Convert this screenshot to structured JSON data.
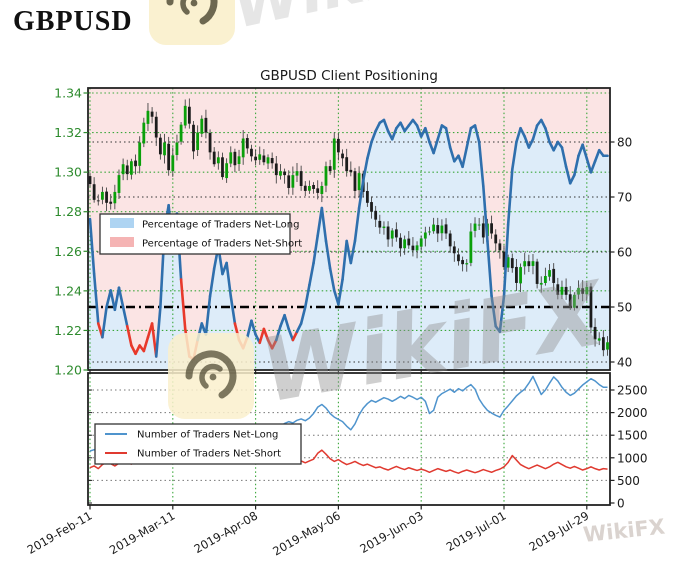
{
  "page": {
    "title": "GBPUSD"
  },
  "watermark": {
    "text": "WikiFX",
    "partial_top": "Wiki"
  },
  "chart_data": {
    "type": "candlestick+line",
    "title": "GBPUSD Client Positioning",
    "x_tick_labels": [
      "2019-Feb-11",
      "2019-Mar-11",
      "2019-Apr-08",
      "2019-May-06",
      "2019-Jun-03",
      "2019-Jul-01",
      "2019-Jul-29"
    ],
    "x_tick_days": [
      0,
      20,
      40,
      60,
      80,
      100,
      120
    ],
    "price_axis": {
      "side": "left",
      "min": 1.2,
      "max": 1.34,
      "ticks": [
        1.34,
        1.32,
        1.3,
        1.28,
        1.26,
        1.24,
        1.22,
        1.2
      ],
      "color": "#2e8b2e"
    },
    "pct_axis": {
      "side": "right",
      "min": 40,
      "max": 84,
      "ticks": [
        80,
        70,
        60,
        50,
        40
      ],
      "reference_line": 50,
      "grid_ticks": [
        80,
        70,
        60,
        40
      ]
    },
    "count_axis": {
      "side": "right",
      "min": 0,
      "max": 2870,
      "ticks": [
        2500,
        2000,
        1500,
        1000,
        500,
        0
      ]
    },
    "legend_top": {
      "items": [
        {
          "label": "Percentage of Traders Net-Long",
          "swatch": "#aed4f2"
        },
        {
          "label": "Percentage of Traders Net-Short",
          "swatch": "#f5b4b4"
        }
      ]
    },
    "legend_bottom": {
      "items": [
        {
          "label": "Number of Traders Net-Long",
          "swatch": "#4f94cd"
        },
        {
          "label": "Number of Traders Net-Short",
          "swatch": "#e03a30"
        }
      ]
    },
    "colors": {
      "candle_up": "#0aa00a",
      "candle_down": "#1c1c1c",
      "wick": "#444444",
      "pct_line_long": "#2f6fad",
      "pct_line_short": "#e8392b",
      "fill_net_long": "rgba(150,195,235,0.32)",
      "fill_net_short": "rgba(242,165,165,0.30)",
      "grid_price": "#3aa73a",
      "grid_pct": "#333333",
      "grid_count": "#777777",
      "num_long_line": "#4f94cd",
      "num_short_line": "#e03a30",
      "axis_label_price": "#2e8b2e",
      "axis_label": "#1a1a1a",
      "spine": "#222222",
      "logo_bg": "#faf0cd",
      "logo_ink": "#4c4731",
      "watermark_gray": "#8f8f8f"
    },
    "series": {
      "price_close": [
        1.294,
        1.286,
        1.2855,
        1.29,
        1.2845,
        1.284,
        1.29,
        1.2985,
        1.304,
        1.299,
        1.3055,
        1.303,
        1.315,
        1.325,
        1.331,
        1.328,
        1.3175,
        1.309,
        1.315,
        1.301,
        1.3085,
        1.315,
        1.324,
        1.3335,
        1.3245,
        1.3105,
        1.32,
        1.327,
        1.32,
        1.31,
        1.304,
        1.3075,
        1.2975,
        1.3045,
        1.31,
        1.3035,
        1.308,
        1.317,
        1.312,
        1.308,
        1.306,
        1.309,
        1.305,
        1.3075,
        1.3045,
        1.2985,
        1.3005,
        1.2985,
        1.292,
        1.2985,
        1.3005,
        1.293,
        1.2905,
        1.293,
        1.2915,
        1.2895,
        1.293,
        1.303,
        1.3005,
        1.317,
        1.31,
        1.307,
        1.3005,
        1.3,
        1.2905,
        1.2995,
        1.29,
        1.2845,
        1.28,
        1.276,
        1.272,
        1.2725,
        1.266,
        1.2705,
        1.267,
        1.2615,
        1.266,
        1.263,
        1.2605,
        1.263,
        1.2665,
        1.2695,
        1.27,
        1.2735,
        1.269,
        1.273,
        1.269,
        1.2625,
        1.259,
        1.255,
        1.2535,
        1.254,
        1.27,
        1.274,
        1.2735,
        1.267,
        1.274,
        1.269,
        1.264,
        1.2605,
        1.252,
        1.257,
        1.2515,
        1.244,
        1.252,
        1.255,
        1.2525,
        1.255,
        1.2435,
        1.244,
        1.2475,
        1.2505,
        1.244,
        1.238,
        1.242,
        1.238,
        1.232,
        1.238,
        1.2415,
        1.2385,
        1.242,
        1.2215,
        1.2155,
        1.216,
        1.21,
        1.214
      ],
      "pct_net_long": [
        66,
        56,
        47,
        44.5,
        50,
        53,
        49.5,
        53.5,
        50,
        46.5,
        43,
        41.5,
        43,
        42,
        44.5,
        47,
        41,
        50,
        64,
        68.5,
        60,
        67,
        55,
        46,
        41,
        40.5,
        44,
        47,
        45,
        52,
        57,
        61,
        56,
        58,
        52,
        47,
        44,
        42.5,
        44.5,
        47.5,
        45,
        43.5,
        46,
        44,
        42.5,
        44,
        46.5,
        48.5,
        46,
        44,
        45.5,
        47,
        50,
        54,
        58,
        63,
        68,
        62,
        57,
        53,
        50.5,
        55,
        62,
        58,
        62,
        68,
        73,
        77,
        80,
        82,
        83.5,
        84,
        82,
        80.5,
        82.5,
        83.5,
        82,
        83,
        84,
        83,
        81,
        82.5,
        80,
        78,
        80.5,
        83,
        82.5,
        79,
        76.5,
        77.5,
        75.5,
        79,
        82.5,
        83,
        80,
        72,
        62,
        52,
        46.5,
        45.5,
        52,
        65,
        75,
        80,
        82.5,
        81,
        79,
        80.5,
        83,
        84,
        82.5,
        80,
        78.5,
        80,
        79,
        75.5,
        72.5,
        74,
        77.5,
        79.5,
        77,
        74.5,
        76.5,
        78.5,
        77.5,
        77.5
      ],
      "pct_short_segments": [
        [
          2,
          3
        ],
        [
          9,
          16
        ],
        [
          22,
          26
        ],
        [
          35,
          38
        ],
        [
          41,
          45
        ],
        [
          49,
          50
        ]
      ],
      "num_net_long": [
        1150,
        1180,
        1120,
        1200,
        1240,
        1190,
        1230,
        1280,
        1250,
        1220,
        1270,
        1320,
        1300,
        1350,
        1300,
        1340,
        1390,
        1360,
        1330,
        1370,
        1400,
        1380,
        1430,
        1480,
        1440,
        1400,
        1450,
        1420,
        1460,
        1510,
        1480,
        1530,
        1560,
        1520,
        1570,
        1540,
        1590,
        1620,
        1580,
        1630,
        1600,
        1650,
        1700,
        1660,
        1710,
        1740,
        1700,
        1760,
        1800,
        1770,
        1830,
        1860,
        1820,
        1880,
        1980,
        2120,
        2180,
        2100,
        1980,
        1900,
        1850,
        1800,
        1700,
        1620,
        1750,
        1950,
        2100,
        2200,
        2270,
        2230,
        2280,
        2330,
        2300,
        2250,
        2300,
        2360,
        2310,
        2380,
        2340,
        2290,
        2340,
        2250,
        1980,
        2050,
        2340,
        2420,
        2470,
        2520,
        2450,
        2530,
        2480,
        2560,
        2620,
        2520,
        2300,
        2160,
        2050,
        1990,
        1940,
        1900,
        2050,
        2150,
        2260,
        2370,
        2450,
        2520,
        2650,
        2800,
        2600,
        2400,
        2500,
        2650,
        2790,
        2700,
        2560,
        2450,
        2380,
        2430,
        2520,
        2610,
        2680,
        2750,
        2700,
        2620,
        2560,
        2560
      ],
      "num_net_short": [
        780,
        820,
        760,
        850,
        900,
        870,
        820,
        880,
        940,
        900,
        860,
        920,
        980,
        950,
        900,
        960,
        1010,
        970,
        930,
        980,
        1020,
        990,
        940,
        900,
        950,
        1000,
        960,
        1010,
        970,
        930,
        970,
        1010,
        960,
        1000,
        1050,
        1000,
        950,
        990,
        940,
        980,
        1020,
        970,
        1010,
        960,
        920,
        960,
        1000,
        950,
        900,
        940,
        980,
        930,
        890,
        930,
        970,
        1100,
        1170,
        1080,
        980,
        920,
        960,
        900,
        850,
        880,
        920,
        870,
        830,
        860,
        820,
        780,
        800,
        760,
        730,
        770,
        810,
        770,
        740,
        780,
        750,
        720,
        750,
        720,
        680,
        720,
        760,
        730,
        700,
        730,
        690,
        660,
        700,
        730,
        700,
        670,
        700,
        740,
        710,
        680,
        720,
        750,
        800,
        900,
        1050,
        950,
        850,
        800,
        760,
        800,
        840,
        800,
        760,
        800,
        860,
        900,
        850,
        800,
        770,
        810,
        770,
        730,
        760,
        800,
        760,
        730,
        760,
        750
      ]
    }
  }
}
